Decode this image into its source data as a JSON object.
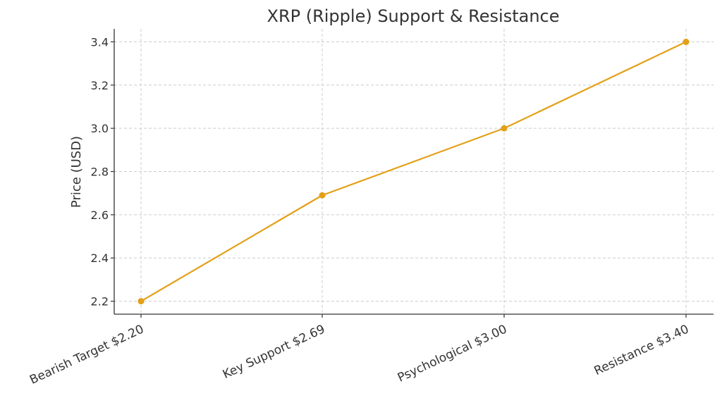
{
  "chart_data": {
    "type": "line",
    "title": "XRP (Ripple) Support & Resistance",
    "xlabel": "",
    "ylabel": "Price (USD)",
    "categories": [
      "Bearish Target $2.20",
      "Key Support $2.69",
      "Psychological $3.00",
      "Resistance $3.40"
    ],
    "series": [
      {
        "values": [
          2.2,
          2.69,
          3.0,
          3.4
        ],
        "color": "#e3a017"
      }
    ],
    "ylim": [
      2.14,
      3.46
    ],
    "yticks": [
      "2.2",
      "2.4",
      "2.6",
      "2.8",
      "3.0",
      "3.2",
      "3.4"
    ],
    "grid": true,
    "marker": "circle"
  }
}
